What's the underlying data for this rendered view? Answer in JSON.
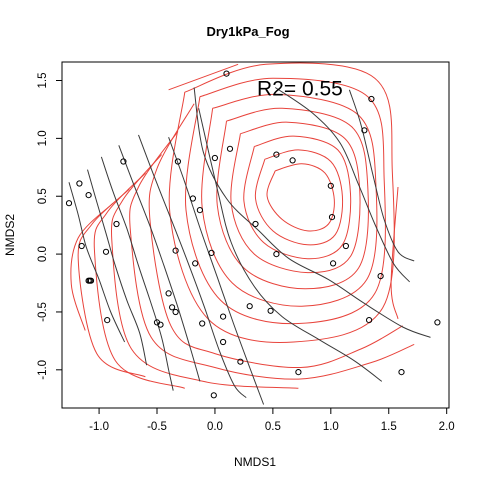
{
  "chart_data": {
    "type": "scatter",
    "title": "Dry1kPa_Fog",
    "xlabel": "NMDS1",
    "ylabel": "NMDS2",
    "xlim": [
      -1.32,
      2.02
    ],
    "ylim": [
      -1.33,
      1.66
    ],
    "xticks": [
      -1.0,
      -0.5,
      0.0,
      0.5,
      1.0,
      1.5,
      2.0
    ],
    "xtick_labels": [
      "-1.0",
      "-0.5",
      "0.0",
      "0.5",
      "1.0",
      "1.5",
      "2.0"
    ],
    "yticks": [
      -1.0,
      -0.5,
      0.0,
      0.5,
      1.0,
      1.5
    ],
    "ytick_labels": [
      "-1.0",
      "-0.5",
      "0.0",
      "0.5",
      "1.0",
      "1.5"
    ],
    "annotation": "R2= 0.55",
    "annotation_pos": {
      "x": 0.95,
      "y": 1.43
    },
    "grid": false,
    "colors": {
      "surface_contours": "#e8443c",
      "gradient_lines": "#3a3a3a",
      "points": "#000000"
    },
    "points": [
      {
        "x": 0.1,
        "y": 1.56
      },
      {
        "x": 1.35,
        "y": 1.34
      },
      {
        "x": 1.29,
        "y": 1.07
      },
      {
        "x": -0.79,
        "y": 0.8
      },
      {
        "x": -0.32,
        "y": 0.8
      },
      {
        "x": 0.0,
        "y": 0.83
      },
      {
        "x": 0.13,
        "y": 0.91
      },
      {
        "x": 0.53,
        "y": 0.86
      },
      {
        "x": 0.67,
        "y": 0.81
      },
      {
        "x": -1.17,
        "y": 0.61
      },
      {
        "x": -1.09,
        "y": 0.51
      },
      {
        "x": 1.0,
        "y": 0.59
      },
      {
        "x": -1.26,
        "y": 0.44
      },
      {
        "x": -0.19,
        "y": 0.48
      },
      {
        "x": -0.13,
        "y": 0.38
      },
      {
        "x": 1.01,
        "y": 0.32
      },
      {
        "x": 0.35,
        "y": 0.26
      },
      {
        "x": -0.85,
        "y": 0.26
      },
      {
        "x": -1.15,
        "y": 0.07
      },
      {
        "x": 1.13,
        "y": 0.07
      },
      {
        "x": -0.94,
        "y": 0.02
      },
      {
        "x": -0.34,
        "y": 0.03
      },
      {
        "x": -0.03,
        "y": 0.01
      },
      {
        "x": 0.53,
        "y": 0.0
      },
      {
        "x": -0.17,
        "y": -0.08
      },
      {
        "x": 1.02,
        "y": -0.08
      },
      {
        "x": 1.43,
        "y": -0.19
      },
      {
        "x": -1.08,
        "y": -0.23
      },
      {
        "x": -1.07,
        "y": -0.23
      },
      {
        "x": -1.09,
        "y": -0.23
      },
      {
        "x": -0.4,
        "y": -0.34
      },
      {
        "x": -0.37,
        "y": -0.46
      },
      {
        "x": 0.3,
        "y": -0.45
      },
      {
        "x": -0.34,
        "y": -0.5
      },
      {
        "x": 0.48,
        "y": -0.49
      },
      {
        "x": 0.07,
        "y": -0.54
      },
      {
        "x": -0.93,
        "y": -0.57
      },
      {
        "x": -0.5,
        "y": -0.59
      },
      {
        "x": -0.47,
        "y": -0.61
      },
      {
        "x": -0.11,
        "y": -0.6
      },
      {
        "x": 1.33,
        "y": -0.57
      },
      {
        "x": 1.92,
        "y": -0.59
      },
      {
        "x": 0.07,
        "y": -0.76
      },
      {
        "x": 0.22,
        "y": -0.93
      },
      {
        "x": 0.72,
        "y": -1.02
      },
      {
        "x": 1.61,
        "y": -1.02
      },
      {
        "x": -0.01,
        "y": -1.22
      }
    ],
    "red_contours": [
      [
        [
          0.52,
          0.72
        ],
        [
          0.75,
          0.78
        ],
        [
          0.95,
          0.7
        ],
        [
          1.03,
          0.47
        ],
        [
          0.98,
          0.26
        ],
        [
          0.8,
          0.2
        ],
        [
          0.58,
          0.3
        ],
        [
          0.45,
          0.5
        ],
        [
          0.52,
          0.72
        ]
      ],
      [
        [
          0.43,
          0.82
        ],
        [
          0.72,
          0.9
        ],
        [
          1.0,
          0.8
        ],
        [
          1.1,
          0.5
        ],
        [
          1.04,
          0.17
        ],
        [
          0.8,
          0.08
        ],
        [
          0.5,
          0.2
        ],
        [
          0.35,
          0.48
        ],
        [
          0.43,
          0.82
        ]
      ],
      [
        [
          0.34,
          0.93
        ],
        [
          0.68,
          1.02
        ],
        [
          1.06,
          0.9
        ],
        [
          1.17,
          0.52
        ],
        [
          1.1,
          0.08
        ],
        [
          0.8,
          -0.04
        ],
        [
          0.42,
          0.1
        ],
        [
          0.25,
          0.46
        ],
        [
          0.34,
          0.93
        ]
      ],
      [
        [
          0.22,
          1.04
        ],
        [
          0.63,
          1.14
        ],
        [
          1.12,
          1.0
        ],
        [
          1.25,
          0.54
        ],
        [
          1.17,
          -0.02
        ],
        [
          0.8,
          -0.16
        ],
        [
          0.34,
          0.0
        ],
        [
          0.14,
          0.44
        ],
        [
          0.22,
          1.04
        ]
      ],
      [
        [
          0.1,
          1.15
        ],
        [
          0.58,
          1.26
        ],
        [
          1.18,
          1.1
        ],
        [
          1.32,
          0.56
        ],
        [
          1.24,
          -0.12
        ],
        [
          0.78,
          -0.3
        ],
        [
          0.25,
          -0.12
        ],
        [
          0.02,
          0.42
        ],
        [
          0.1,
          1.15
        ]
      ],
      [
        [
          -0.02,
          1.26
        ],
        [
          0.54,
          1.38
        ],
        [
          1.24,
          1.2
        ],
        [
          1.39,
          0.58
        ],
        [
          1.31,
          -0.22
        ],
        [
          0.75,
          -0.45
        ],
        [
          0.15,
          -0.25
        ],
        [
          -0.11,
          0.4
        ],
        [
          -0.02,
          1.26
        ]
      ],
      [
        [
          -0.13,
          1.36
        ],
        [
          0.5,
          1.52
        ],
        [
          1.32,
          1.36
        ],
        [
          1.46,
          0.66
        ],
        [
          1.38,
          -0.34
        ],
        [
          0.72,
          -0.6
        ],
        [
          0.05,
          -0.4
        ],
        [
          -0.25,
          0.38
        ],
        [
          -0.13,
          1.36
        ]
      ],
      [
        [
          -0.26,
          1.4
        ],
        [
          0.44,
          1.64
        ],
        [
          1.38,
          1.52
        ],
        [
          1.53,
          0.74
        ],
        [
          1.45,
          -0.46
        ],
        [
          0.68,
          -0.76
        ],
        [
          -0.06,
          -0.56
        ],
        [
          -0.39,
          0.36
        ],
        [
          -0.26,
          1.4
        ]
      ],
      [
        [
          -0.4,
          1.42
        ],
        [
          0.2,
          1.64
        ]
      ],
      [
        [
          1.58,
          -0.56
        ],
        [
          1.52,
          -0.26
        ],
        [
          1.58,
          0.58
        ]
      ],
      [
        [
          -0.18,
          1.3
        ],
        [
          -0.5,
          0.74
        ],
        [
          -0.56,
          0.28
        ],
        [
          -0.38,
          -0.62
        ],
        [
          0.0,
          -0.86
        ],
        [
          0.74,
          -0.98
        ],
        [
          1.26,
          -0.82
        ],
        [
          1.62,
          -0.62
        ]
      ],
      [
        [
          -0.32,
          1.06
        ],
        [
          -0.66,
          0.58
        ],
        [
          -0.73,
          0.2
        ],
        [
          -0.55,
          -0.72
        ],
        [
          0.0,
          -0.98
        ],
        [
          0.72,
          -1.08
        ],
        [
          1.34,
          -0.94
        ],
        [
          1.72,
          -0.78
        ]
      ],
      [
        [
          -0.46,
          0.86
        ],
        [
          -0.8,
          0.46
        ],
        [
          -0.89,
          0.12
        ],
        [
          -0.72,
          -0.82
        ],
        [
          -0.1,
          -1.1
        ],
        [
          0.72,
          -1.16
        ]
      ],
      [
        [
          -0.6,
          0.7
        ],
        [
          -0.93,
          0.36
        ],
        [
          -1.04,
          0.04
        ],
        [
          -0.86,
          -0.92
        ],
        [
          -0.26,
          -1.16
        ]
      ],
      [
        [
          -0.74,
          0.56
        ],
        [
          -1.06,
          0.26
        ],
        [
          -1.18,
          -0.04
        ],
        [
          -1.02,
          -0.86
        ],
        [
          -0.6,
          -1.06
        ]
      ],
      [
        [
          -0.88,
          0.44
        ],
        [
          -1.18,
          0.14
        ],
        [
          -1.24,
          -0.26
        ],
        [
          -1.12,
          -0.66
        ]
      ]
    ],
    "gray_lines": [
      [
        [
          -1.26,
          0.62
        ],
        [
          -1.18,
          0.34
        ],
        [
          -1.11,
          0.06
        ],
        [
          -1.0,
          -0.22
        ],
        [
          -0.9,
          -0.5
        ],
        [
          -0.78,
          -0.76
        ]
      ],
      [
        [
          -1.1,
          0.73
        ],
        [
          -1.02,
          0.45
        ],
        [
          -0.94,
          0.18
        ],
        [
          -0.86,
          -0.1
        ],
        [
          -0.76,
          -0.4
        ],
        [
          -0.65,
          -0.68
        ],
        [
          -0.59,
          -0.96
        ]
      ],
      [
        [
          -0.98,
          0.84
        ],
        [
          -0.88,
          0.54
        ],
        [
          -0.76,
          0.22
        ],
        [
          -0.66,
          -0.1
        ],
        [
          -0.56,
          -0.4
        ],
        [
          -0.46,
          -0.72
        ],
        [
          -0.4,
          -1.0
        ],
        [
          -0.36,
          -1.18
        ]
      ],
      [
        [
          -0.83,
          0.94
        ],
        [
          -0.7,
          0.6
        ],
        [
          -0.56,
          0.24
        ],
        [
          -0.44,
          -0.1
        ],
        [
          -0.32,
          -0.46
        ],
        [
          -0.21,
          -0.82
        ],
        [
          -0.13,
          -1.1
        ]
      ],
      [
        [
          -0.66,
          1.03
        ],
        [
          -0.52,
          0.66
        ],
        [
          -0.37,
          0.28
        ],
        [
          -0.23,
          -0.08
        ],
        [
          -0.09,
          -0.46
        ],
        [
          0.04,
          -0.84
        ],
        [
          0.17,
          -1.14
        ],
        [
          0.27,
          -1.24
        ]
      ],
      [
        [
          -0.4,
          1.01
        ],
        [
          -0.26,
          0.62
        ],
        [
          -0.12,
          0.2
        ],
        [
          0.02,
          -0.2
        ],
        [
          0.16,
          -0.6
        ],
        [
          0.3,
          -0.98
        ],
        [
          0.42,
          -1.3
        ]
      ],
      [
        [
          -0.14,
          1.26
        ],
        [
          0.02,
          0.56
        ],
        [
          0.14,
          0.1
        ],
        [
          0.34,
          -0.28
        ],
        [
          0.58,
          -0.54
        ],
        [
          0.9,
          -0.74
        ],
        [
          1.2,
          -0.92
        ],
        [
          1.44,
          -1.1
        ]
      ],
      [
        [
          -0.18,
          1.44
        ],
        [
          -0.1,
          0.88
        ],
        [
          0.1,
          0.48
        ],
        [
          0.38,
          0.2
        ],
        [
          0.64,
          -0.04
        ],
        [
          0.98,
          -0.22
        ],
        [
          1.28,
          -0.42
        ],
        [
          1.62,
          -0.63
        ],
        [
          1.86,
          -0.72
        ]
      ],
      [
        [
          1.16,
          1.42
        ],
        [
          1.26,
          1.12
        ],
        [
          1.36,
          0.7
        ],
        [
          1.46,
          0.3
        ],
        [
          1.58,
          0.02
        ],
        [
          1.72,
          -0.06
        ]
      ],
      [
        [
          0.52,
          1.44
        ],
        [
          0.84,
          1.22
        ],
        [
          1.08,
          0.96
        ],
        [
          1.24,
          0.6
        ],
        [
          1.38,
          0.26
        ],
        [
          1.54,
          -0.08
        ],
        [
          1.68,
          -0.24
        ]
      ]
    ]
  }
}
